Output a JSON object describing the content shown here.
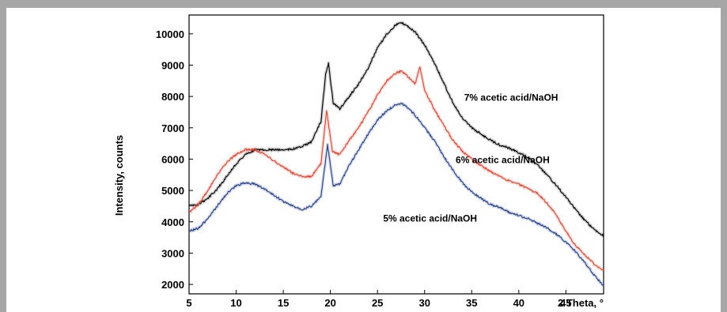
{
  "chart_data": {
    "type": "line",
    "title": "",
    "xlabel": "2 Theta, °",
    "ylabel": "Intensity, counts",
    "xlim": [
      5,
      49
    ],
    "ylim": [
      1700,
      10600
    ],
    "x_ticks": [
      5,
      10,
      15,
      20,
      25,
      30,
      35,
      40,
      45
    ],
    "y_ticks": [
      2000,
      3000,
      4000,
      5000,
      6000,
      7000,
      8000,
      9000,
      10000
    ],
    "grid": false,
    "legend": "none",
    "series": [
      {
        "name": "7% acetic acid/NaOH",
        "color": "#000000",
        "x": [
          5,
          6,
          7,
          8,
          9,
          10,
          11,
          12,
          13,
          14,
          15,
          16,
          17,
          18,
          19,
          19.5,
          19.8,
          20.3,
          21,
          22,
          23,
          24,
          25,
          26,
          27,
          27.5,
          28,
          29,
          30,
          31,
          32,
          33,
          34,
          35,
          36,
          37,
          38,
          39,
          40,
          41,
          42,
          43,
          44,
          45,
          46,
          47,
          48,
          49
        ],
        "y": [
          4500,
          4550,
          4750,
          5050,
          5450,
          5850,
          6150,
          6300,
          6300,
          6300,
          6300,
          6320,
          6400,
          6550,
          7200,
          8700,
          9050,
          7800,
          7600,
          8000,
          8400,
          8900,
          9550,
          10000,
          10300,
          10350,
          10300,
          10050,
          9650,
          9100,
          8450,
          7800,
          7300,
          7000,
          6800,
          6600,
          6450,
          6350,
          6200,
          6050,
          5800,
          5500,
          5150,
          4800,
          4400,
          4050,
          3750,
          3550
        ]
      },
      {
        "name": "6% acetic acid/NaOH",
        "color": "#e8402e",
        "x": [
          5,
          6,
          7,
          8,
          9,
          10,
          11,
          12,
          13,
          14,
          15,
          16,
          17,
          18,
          19,
          19.6,
          20.2,
          21,
          22,
          23,
          24,
          25,
          26,
          27,
          27.5,
          28,
          29,
          29.5,
          30,
          31,
          32,
          33,
          34,
          35,
          36,
          37,
          38,
          39,
          40,
          41,
          42,
          43,
          44,
          45,
          46,
          47,
          48,
          49
        ],
        "y": [
          4300,
          4550,
          5000,
          5500,
          5900,
          6150,
          6300,
          6300,
          6150,
          5950,
          5750,
          5550,
          5450,
          5450,
          5850,
          7550,
          6250,
          6150,
          6600,
          7000,
          7500,
          8050,
          8500,
          8750,
          8800,
          8700,
          8400,
          8950,
          8200,
          7600,
          7100,
          6600,
          6250,
          6000,
          5800,
          5600,
          5450,
          5300,
          5200,
          5050,
          4900,
          4600,
          4200,
          3700,
          3250,
          2950,
          2650,
          2450
        ]
      },
      {
        "name": "5% acetic acid/NaOH",
        "color": "#233f88",
        "x": [
          5,
          6,
          7,
          8,
          9,
          10,
          11,
          12,
          13,
          14,
          15,
          16,
          17,
          18,
          19,
          19.7,
          20.3,
          21,
          22,
          23,
          24,
          25,
          26,
          27,
          27.5,
          28,
          29,
          30,
          31,
          32,
          33,
          34,
          35,
          36,
          37,
          38,
          39,
          40,
          41,
          42,
          43,
          44,
          45,
          46,
          47,
          48,
          49
        ],
        "y": [
          3700,
          3800,
          4100,
          4500,
          4900,
          5150,
          5250,
          5200,
          5050,
          4850,
          4650,
          4500,
          4400,
          4500,
          4800,
          6450,
          5150,
          5200,
          5800,
          6300,
          6800,
          7250,
          7550,
          7750,
          7780,
          7700,
          7400,
          7000,
          6600,
          6100,
          5650,
          5250,
          4950,
          4750,
          4550,
          4450,
          4300,
          4200,
          4100,
          3950,
          3800,
          3600,
          3350,
          3050,
          2700,
          2300,
          1950
        ]
      }
    ],
    "annotations": [
      {
        "text": "7% acetic acid/NaOH",
        "x": 34.2,
        "y": 7870,
        "series": 0
      },
      {
        "text": "6% acetic acid/NaOH",
        "x": 33.3,
        "y": 5870,
        "series": 1
      },
      {
        "text": "5% acetic acid/NaOH",
        "x": 25.6,
        "y": 4010,
        "series": 2
      }
    ]
  }
}
